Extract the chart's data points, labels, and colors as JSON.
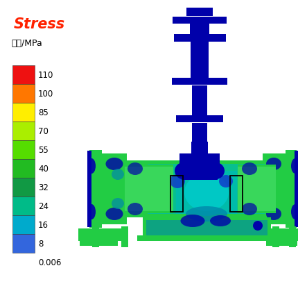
{
  "title": "Stress",
  "subtitle": "应力/MPa",
  "colorbar_labels": [
    "110",
    "100",
    "85",
    "70",
    "55",
    "40",
    "32",
    "24",
    "16",
    "8",
    "0.006"
  ],
  "colorbar_colors": [
    "#ee1111",
    "#ff7700",
    "#ffee00",
    "#aaee00",
    "#55dd00",
    "#22bb22",
    "#119944",
    "#00bb88",
    "#00aacc",
    "#3366dd",
    "#0000bb"
  ],
  "title_color": "#ff2200",
  "bg_color": "#ffffff",
  "dark_blue": "#0000aa",
  "med_blue": "#1133cc",
  "blue_green": "#0088aa",
  "teal": "#00bbaa",
  "green": "#22cc44",
  "lt_green": "#44dd66",
  "cyan": "#00cccc"
}
